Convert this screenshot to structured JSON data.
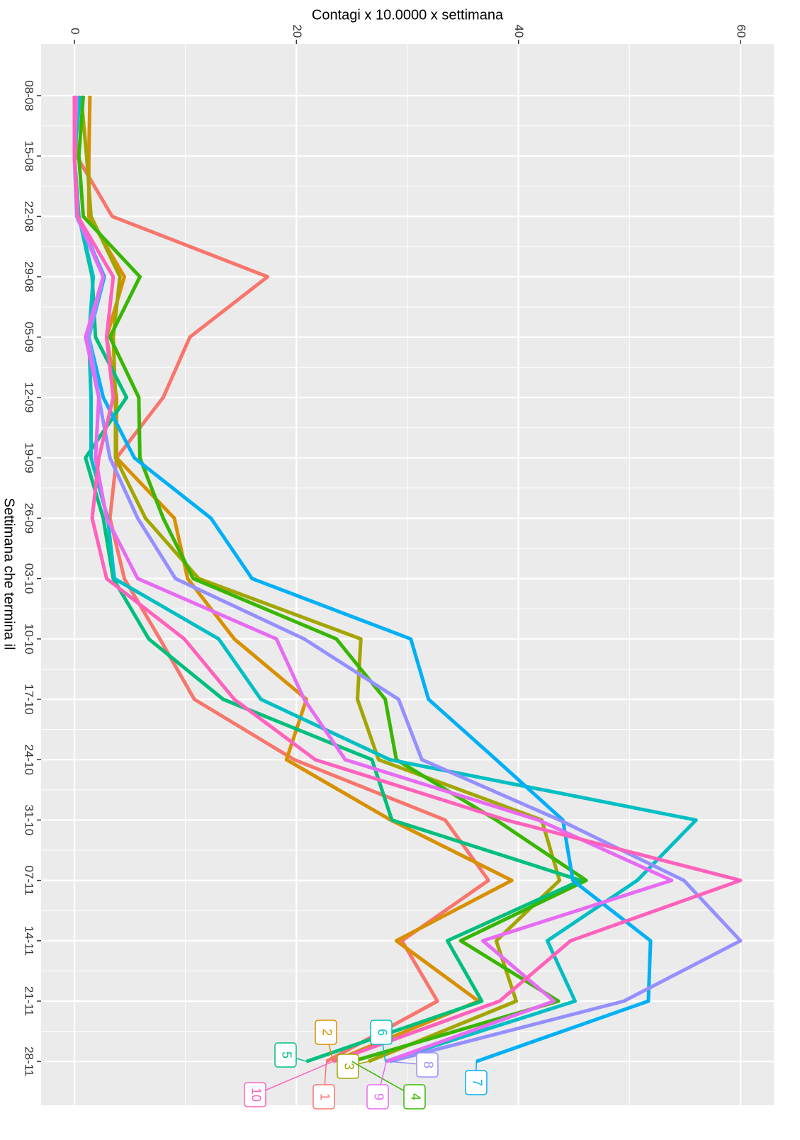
{
  "chart_data": {
    "type": "line",
    "y_label": "Contagi x 10.0000 x settimana",
    "x_label": "Settimana che termina il",
    "categories": [
      "08-08",
      "15-08",
      "22-08",
      "29-08",
      "05-09",
      "12-09",
      "19-09",
      "26-09",
      "03-10",
      "10-10",
      "17-10",
      "24-10",
      "31-10",
      "07-11",
      "14-11",
      "21-11",
      "28-11"
    ],
    "ylim": [
      -3,
      63
    ],
    "yticks": [
      0,
      20,
      40,
      60
    ],
    "grid": true,
    "series": [
      {
        "name": "1",
        "color": "#F8766D",
        "values": [
          0,
          0.2,
          3.4,
          17.4,
          10.4,
          8,
          3.8,
          3.2,
          4.5,
          7.7,
          10.8,
          19.8,
          33.4,
          37.3,
          29.5,
          32.7,
          22.7
        ]
      },
      {
        "name": "2",
        "color": "#D89000",
        "values": [
          1.4,
          1.3,
          1.3,
          4.5,
          2.9,
          3.8,
          3.8,
          9,
          10.2,
          14.4,
          20.9,
          19.1,
          28.5,
          39.4,
          29,
          36.4,
          23.3
        ]
      },
      {
        "name": "3",
        "color": "#A3A500",
        "values": [
          0.6,
          1.1,
          1.5,
          4.1,
          3.5,
          3.7,
          3.7,
          6.4,
          11.2,
          25.8,
          25.5,
          27.4,
          42.1,
          43.7,
          38,
          39.8,
          26.5
        ]
      },
      {
        "name": "4",
        "color": "#39B600",
        "values": [
          0.8,
          0.4,
          0.8,
          5.9,
          3.2,
          5.8,
          5.9,
          8,
          10.7,
          23.6,
          28,
          29,
          38,
          46.1,
          34.8,
          43.6,
          25
        ]
      },
      {
        "name": "5",
        "color": "#00BF7D",
        "values": [
          0.4,
          0,
          0.4,
          1.6,
          1.9,
          4.7,
          1,
          2.6,
          3.5,
          6.7,
          13.4,
          26.8,
          28.6,
          45.6,
          33.6,
          36.7,
          20.9
        ]
      },
      {
        "name": "6",
        "color": "#00BFC4",
        "values": [
          0.5,
          0,
          0.4,
          1.7,
          1.3,
          1.5,
          1.5,
          3,
          3.6,
          13,
          16.8,
          28.4,
          56,
          50.7,
          42.6,
          45.1,
          28
        ]
      },
      {
        "name": "7",
        "color": "#00B0F6",
        "values": [
          0.2,
          0,
          0.3,
          2.7,
          1.3,
          2.6,
          5.4,
          12.3,
          16,
          30.3,
          31.9,
          38,
          44,
          44.9,
          51.9,
          51.7,
          36.2
        ]
      },
      {
        "name": "8",
        "color": "#9590FF",
        "values": [
          0.2,
          0,
          0.2,
          2.6,
          1.3,
          2.2,
          3.2,
          5.7,
          9.1,
          20.7,
          29.2,
          31.3,
          43.7,
          54.9,
          60,
          49.5,
          28.4
        ]
      },
      {
        "name": "9",
        "color": "#E76BF3",
        "values": [
          0.2,
          0,
          0.3,
          2.6,
          1,
          2.2,
          1.9,
          2.9,
          5.7,
          18.2,
          20.7,
          24.4,
          41.8,
          53.8,
          36.8,
          43.2,
          28.1
        ]
      },
      {
        "name": "10",
        "color": "#FF62BC",
        "values": [
          0,
          0,
          0.3,
          3.5,
          2.9,
          3.5,
          2.2,
          1.6,
          2.9,
          9.9,
          14.4,
          21.7,
          38.9,
          60,
          44.7,
          38.3,
          23.3
        ]
      }
    ]
  }
}
